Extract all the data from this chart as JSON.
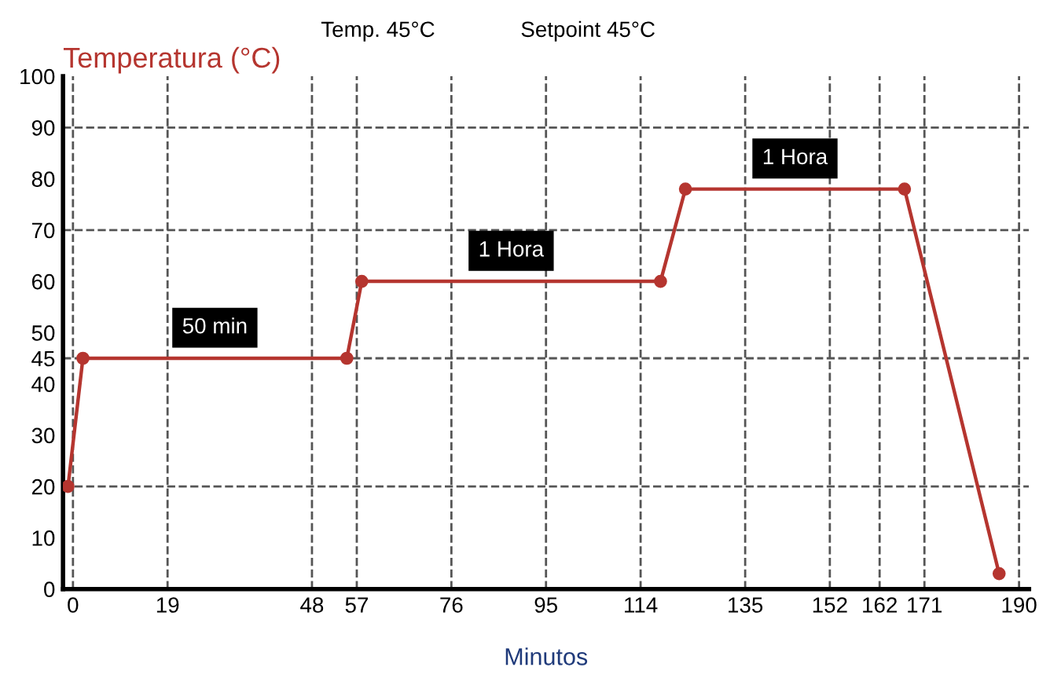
{
  "chart_data": {
    "type": "line",
    "title": "Temperatura (°C)",
    "xlabel": "Minutos",
    "x": [
      -1,
      2,
      55,
      58,
      118,
      123,
      167,
      186
    ],
    "series": [
      {
        "color": "#b5352f",
        "values": [
          20,
          45,
          45,
          60,
          60,
          78,
          78,
          3
        ]
      }
    ],
    "marker": "circle",
    "line_style": "solid",
    "xlim": [
      -2,
      192
    ],
    "xticks": [
      0,
      19,
      48,
      57,
      76,
      95,
      114,
      135,
      152,
      162,
      171,
      190
    ],
    "ylim": [
      0,
      100
    ],
    "yticks": [
      0,
      10,
      20,
      30,
      40,
      45,
      50,
      60,
      70,
      80,
      90,
      100
    ],
    "grid": "x",
    "ref_lines": [
      {
        "axis": "y",
        "value": 20,
        "color": "#555555",
        "line_style": "dashed"
      },
      {
        "axis": "y",
        "value": 45,
        "color": "#555555",
        "line_style": "dashed"
      },
      {
        "axis": "y",
        "value": 70,
        "color": "#555555",
        "line_style": "dashed"
      },
      {
        "axis": "y",
        "value": 90,
        "color": "#555555",
        "line_style": "dashed"
      }
    ],
    "annotations": [
      "Temp. 45°C",
      "Setpoint 45°C",
      "50 min",
      "1 Hora",
      "1 Hora"
    ],
    "legend": false
  }
}
